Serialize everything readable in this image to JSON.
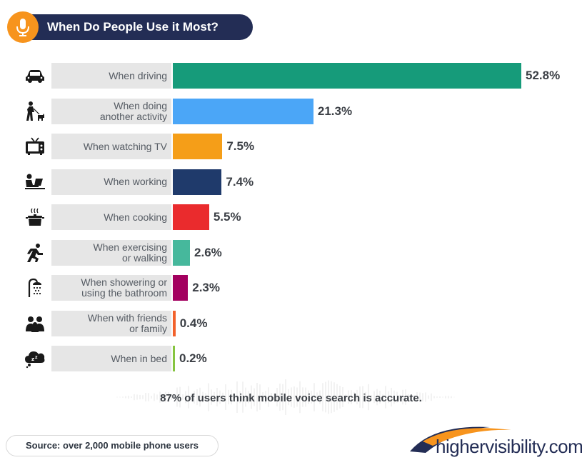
{
  "header": {
    "title": "When Do People Use it Most?",
    "icon": "microphone-icon",
    "pill_color": "#232d55",
    "icon_color": "#f7941d"
  },
  "chart_data": {
    "type": "bar",
    "orientation": "horizontal",
    "title": "When Do People Use it Most?",
    "categories": [
      "When driving",
      "When doing\nanother activity",
      "When watching TV",
      "When working",
      "When cooking",
      "When exercising\nor walking",
      "When showering or\nusing the bathroom",
      "When with friends\nor family",
      "When in bed"
    ],
    "values": [
      52.8,
      21.3,
      7.5,
      7.4,
      5.5,
      2.6,
      2.3,
      0.4,
      0.2
    ],
    "value_labels": [
      "52.8%",
      "21.3%",
      "7.5%",
      "7.4%",
      "5.5%",
      "2.6%",
      "2.3%",
      "0.4%",
      "0.2%"
    ],
    "colors": [
      "#169b7a",
      "#4ba6f7",
      "#f59e18",
      "#1f3a6b",
      "#ea2b2d",
      "#46b89c",
      "#a3005f",
      "#f2612b",
      "#86c440"
    ],
    "icons": [
      "car-icon",
      "person-walking-dog-icon",
      "tv-icon",
      "person-at-laptop-icon",
      "cooking-pot-icon",
      "running-person-icon",
      "shower-icon",
      "people-group-icon",
      "sleep-cloud-icon"
    ],
    "xlim": [
      0,
      52.8
    ],
    "xlabel": "",
    "ylabel": "",
    "grid": false,
    "legend": "none"
  },
  "footnote": "87% of users think mobile voice search is accurate.",
  "source": "Source: over 2,000 mobile phone users",
  "logo": {
    "text": "highervisibility.com"
  }
}
